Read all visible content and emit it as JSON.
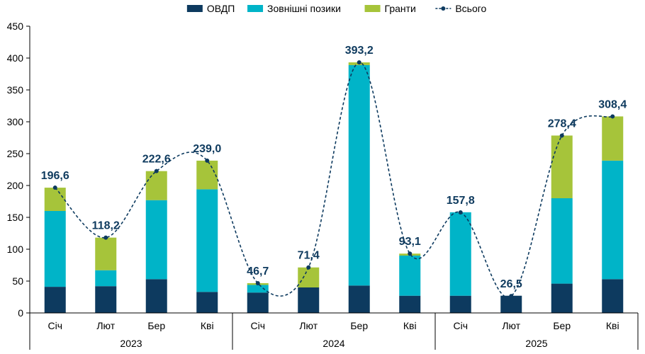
{
  "chart_data": {
    "type": "bar",
    "stacked": true,
    "title": "",
    "xlabel": "",
    "ylabel": "",
    "ylim": [
      0,
      450
    ],
    "yticks": [
      0,
      50,
      100,
      150,
      200,
      250,
      300,
      350,
      400,
      450
    ],
    "grid": false,
    "legend_position": "top-center",
    "groups": [
      {
        "label": "2023",
        "categories": [
          "Січ",
          "Лют",
          "Бер",
          "Кві"
        ]
      },
      {
        "label": "2024",
        "categories": [
          "Січ",
          "Лют",
          "Бер",
          "Кві"
        ]
      },
      {
        "label": "2025",
        "categories": [
          "Січ",
          "Лют",
          "Бер",
          "Кві"
        ]
      }
    ],
    "series": [
      {
        "name": "ОВДП",
        "kind": "bar",
        "color": "#0d3a5f",
        "values": [
          41,
          42,
          53,
          33,
          32,
          40,
          43,
          27,
          27,
          27,
          46,
          53
        ]
      },
      {
        "name": "Зовнішні позики",
        "kind": "bar",
        "color": "#00b4c8",
        "values": [
          119,
          25,
          124,
          161,
          12,
          0,
          346,
          63,
          131,
          0,
          134,
          186
        ]
      },
      {
        "name": "Гранти",
        "kind": "bar",
        "color": "#a6c43a",
        "values": [
          36.6,
          51.2,
          45.6,
          45,
          2.7,
          31.4,
          4.2,
          3.1,
          0,
          0,
          98.4,
          69.4
        ]
      },
      {
        "name": "Всього",
        "kind": "line",
        "color": "#0d3a5f",
        "values": [
          196.6,
          118.2,
          222.6,
          239.0,
          46.7,
          71.4,
          393.2,
          93.1,
          157.8,
          26.5,
          278.4,
          308.4
        ],
        "labels": [
          "196,6",
          "118,2",
          "222,6",
          "239,0",
          "46,7",
          "71,4",
          "393,2",
          "93,1",
          "157,8",
          "26,5",
          "278,4",
          "308,4"
        ]
      }
    ]
  }
}
